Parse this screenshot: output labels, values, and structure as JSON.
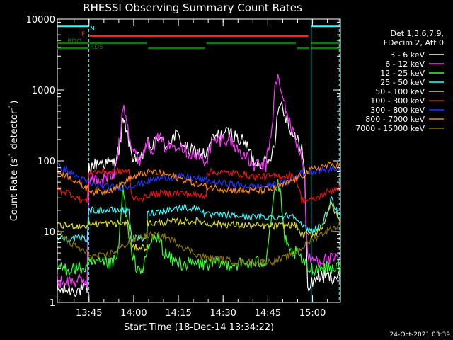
{
  "chart_data": {
    "type": "line",
    "title": "RHESSI Observing Summary Count Rates",
    "xlabel": "Start Time (18-Dec-14 13:34:22)",
    "ylabel": "Count Rate (s⁻¹ detector⁻¹)",
    "ylabel_parts": [
      "Count Rate (s",
      "-1",
      " detector",
      "-1",
      ")"
    ],
    "yscale": "log",
    "ylim": [
      1,
      10000
    ],
    "y_ticks": [
      {
        "v": 1,
        "label": "1"
      },
      {
        "v": 10,
        "label": "10"
      },
      {
        "v": 100,
        "label": "100"
      },
      {
        "v": 1000,
        "label": "1000"
      },
      {
        "v": 10000,
        "label": "10000"
      }
    ],
    "xlim_min": [
      0,
      95
    ],
    "x_ticks": [
      {
        "v": 10.63,
        "label": "13:45"
      },
      {
        "v": 25.63,
        "label": "14:00"
      },
      {
        "v": 40.63,
        "label": "14:15"
      },
      {
        "v": 55.63,
        "label": "14:30"
      },
      {
        "v": 70.63,
        "label": "14:45"
      },
      {
        "v": 85.63,
        "label": "15:00"
      }
    ],
    "legend_header": [
      "Det 1,3,6,7,9,",
      "FDecim 2, Att 0"
    ],
    "series": [
      {
        "name": "3 - 6 keV",
        "color": "#ffffff",
        "points": [
          [
            0,
            1.5
          ],
          [
            10,
            1.5
          ],
          [
            10.6,
            80
          ],
          [
            14,
            95
          ],
          [
            19,
            92
          ],
          [
            21,
            160
          ],
          [
            22,
            350
          ],
          [
            23,
            300
          ],
          [
            25,
            120
          ],
          [
            28,
            100
          ],
          [
            30,
            180
          ],
          [
            32,
            155
          ],
          [
            34,
            230
          ],
          [
            36,
            160
          ],
          [
            38,
            200
          ],
          [
            40,
            230
          ],
          [
            42,
            180
          ],
          [
            44,
            140
          ],
          [
            48,
            130
          ],
          [
            50,
            120
          ],
          [
            52,
            200
          ],
          [
            55,
            240
          ],
          [
            58,
            250
          ],
          [
            61,
            200
          ],
          [
            63,
            180
          ],
          [
            66,
            100
          ],
          [
            69,
            95
          ],
          [
            71,
            95
          ],
          [
            73,
            200
          ],
          [
            74,
            500
          ],
          [
            75,
            700
          ],
          [
            76,
            500
          ],
          [
            77,
            400
          ],
          [
            78,
            300
          ],
          [
            80,
            200
          ],
          [
            82,
            160
          ],
          [
            83,
            60
          ],
          [
            84,
            1.5
          ],
          [
            85,
            1.8
          ],
          [
            87,
            2.3
          ],
          [
            95,
            2.3
          ]
        ]
      },
      {
        "name": "6 - 12 keV",
        "color": "#ff33ff",
        "points": [
          [
            0,
            2
          ],
          [
            10,
            2
          ],
          [
            10.6,
            55
          ],
          [
            15,
            55
          ],
          [
            19,
            62
          ],
          [
            21,
            200
          ],
          [
            22,
            620
          ],
          [
            23,
            500
          ],
          [
            24,
            250
          ],
          [
            25,
            150
          ],
          [
            27,
            110
          ],
          [
            28,
            105
          ],
          [
            30,
            180
          ],
          [
            32,
            150
          ],
          [
            34,
            220
          ],
          [
            36,
            160
          ],
          [
            38,
            160
          ],
          [
            41,
            180
          ],
          [
            44,
            130
          ],
          [
            48,
            110
          ],
          [
            50,
            100
          ],
          [
            52,
            180
          ],
          [
            55,
            200
          ],
          [
            58,
            200
          ],
          [
            60,
            150
          ],
          [
            62,
            130
          ],
          [
            64,
            100
          ],
          [
            66,
            85
          ],
          [
            70,
            85
          ],
          [
            72,
            300
          ],
          [
            73,
            1000
          ],
          [
            74,
            1600
          ],
          [
            75,
            900
          ],
          [
            76,
            700
          ],
          [
            77,
            500
          ],
          [
            78,
            330
          ],
          [
            80,
            200
          ],
          [
            81,
            150
          ],
          [
            82,
            110
          ],
          [
            83,
            50
          ],
          [
            84,
            4
          ],
          [
            85,
            4
          ],
          [
            95,
            4
          ]
        ]
      },
      {
        "name": "12 - 25 keV",
        "color": "#33ff33",
        "points": [
          [
            0,
            3
          ],
          [
            10,
            3
          ],
          [
            10.6,
            3.5
          ],
          [
            15,
            3.5
          ],
          [
            18,
            3.5
          ],
          [
            20,
            4
          ],
          [
            21,
            10
          ],
          [
            22,
            40
          ],
          [
            23,
            20
          ],
          [
            24,
            8
          ],
          [
            25,
            4.5
          ],
          [
            27,
            3
          ],
          [
            29,
            3
          ],
          [
            30,
            5
          ],
          [
            32,
            8
          ],
          [
            34,
            8
          ],
          [
            36,
            5
          ],
          [
            38,
            4
          ],
          [
            42,
            3.5
          ],
          [
            48,
            3.5
          ],
          [
            52,
            3.5
          ],
          [
            55,
            3.5
          ],
          [
            60,
            3.5
          ],
          [
            66,
            3.5
          ],
          [
            70,
            4
          ],
          [
            72,
            20
          ],
          [
            73,
            40
          ],
          [
            74,
            45
          ],
          [
            75,
            30
          ],
          [
            76,
            10
          ],
          [
            77,
            6
          ],
          [
            78,
            5
          ],
          [
            80,
            5
          ],
          [
            82,
            4
          ],
          [
            83,
            3.5
          ],
          [
            84,
            3
          ],
          [
            95,
            3.2
          ]
        ]
      },
      {
        "name": "25 - 50 keV",
        "color": "#33ffff",
        "points": [
          [
            0,
            8
          ],
          [
            10,
            8
          ],
          [
            10.6,
            20
          ],
          [
            14,
            20
          ],
          [
            19,
            20
          ],
          [
            24,
            20
          ],
          [
            25,
            8
          ],
          [
            30,
            8
          ],
          [
            30.2,
            18
          ],
          [
            36,
            20
          ],
          [
            42,
            22
          ],
          [
            48,
            21
          ],
          [
            50,
            17
          ],
          [
            52,
            17
          ],
          [
            58,
            17
          ],
          [
            66,
            16
          ],
          [
            70,
            16
          ],
          [
            74,
            16
          ],
          [
            78,
            17
          ],
          [
            80,
            17
          ],
          [
            82,
            12
          ],
          [
            85,
            10
          ],
          [
            89,
            13
          ],
          [
            91,
            22
          ],
          [
            92,
            28
          ],
          [
            93,
            22
          ],
          [
            95,
            16
          ]
        ]
      },
      {
        "name": "50 - 100 keV",
        "color": "#dddd22",
        "points": [
          [
            0,
            12
          ],
          [
            10,
            12
          ],
          [
            10.6,
            13
          ],
          [
            14,
            13
          ],
          [
            19,
            13
          ],
          [
            24,
            13
          ],
          [
            25,
            6
          ],
          [
            30,
            6
          ],
          [
            30.2,
            13
          ],
          [
            36,
            13.5
          ],
          [
            42,
            14
          ],
          [
            48,
            14
          ],
          [
            50,
            13
          ],
          [
            52,
            13
          ],
          [
            58,
            12.5
          ],
          [
            66,
            12
          ],
          [
            74,
            12
          ],
          [
            78,
            12.5
          ],
          [
            80,
            12.5
          ],
          [
            82,
            9
          ],
          [
            86,
            9
          ],
          [
            89,
            12
          ],
          [
            91,
            20
          ],
          [
            92,
            24
          ],
          [
            93,
            20
          ],
          [
            95,
            13
          ]
        ]
      },
      {
        "name": "100 - 300 keV",
        "color": "#ee1111",
        "points": [
          [
            0,
            40
          ],
          [
            4,
            35
          ],
          [
            8,
            28
          ],
          [
            10,
            27
          ],
          [
            10.6,
            70
          ],
          [
            15,
            70
          ],
          [
            20,
            70
          ],
          [
            24,
            72
          ],
          [
            25,
            30
          ],
          [
            30,
            30
          ],
          [
            30.2,
            33
          ],
          [
            36,
            35
          ],
          [
            42,
            35
          ],
          [
            48,
            32
          ],
          [
            50,
            33
          ],
          [
            50.2,
            70
          ],
          [
            56,
            68
          ],
          [
            62,
            65
          ],
          [
            66,
            60
          ],
          [
            70,
            60
          ],
          [
            74,
            60
          ],
          [
            78,
            62
          ],
          [
            80,
            60
          ],
          [
            82,
            28
          ],
          [
            86,
            28
          ],
          [
            90,
            35
          ],
          [
            93,
            40
          ],
          [
            95,
            43
          ]
        ]
      },
      {
        "name": "300 - 800 keV",
        "color": "#2233ff",
        "points": [
          [
            0,
            85
          ],
          [
            4,
            70
          ],
          [
            8,
            55
          ],
          [
            12,
            46
          ],
          [
            16,
            43
          ],
          [
            20,
            42
          ],
          [
            24,
            44
          ],
          [
            28,
            48
          ],
          [
            32,
            54
          ],
          [
            36,
            58
          ],
          [
            40,
            59
          ],
          [
            44,
            58
          ],
          [
            48,
            55
          ],
          [
            52,
            50
          ],
          [
            56,
            48
          ],
          [
            60,
            46
          ],
          [
            64,
            44
          ],
          [
            66,
            43
          ],
          [
            70,
            44
          ],
          [
            74,
            47
          ],
          [
            78,
            52
          ],
          [
            80,
            60
          ],
          [
            82,
            68
          ],
          [
            86,
            72
          ],
          [
            90,
            76
          ],
          [
            93,
            78
          ],
          [
            95,
            78
          ]
        ]
      },
      {
        "name": "800 - 7000 keV",
        "color": "#ff8800",
        "points": [
          [
            0,
            70
          ],
          [
            4,
            60
          ],
          [
            8,
            45
          ],
          [
            12,
            37
          ],
          [
            16,
            37
          ],
          [
            20,
            43
          ],
          [
            24,
            55
          ],
          [
            28,
            65
          ],
          [
            32,
            70
          ],
          [
            36,
            65
          ],
          [
            40,
            58
          ],
          [
            44,
            52
          ],
          [
            48,
            45
          ],
          [
            52,
            42
          ],
          [
            56,
            40
          ],
          [
            60,
            38
          ],
          [
            64,
            38
          ],
          [
            68,
            38
          ],
          [
            72,
            40
          ],
          [
            76,
            46
          ],
          [
            80,
            55
          ],
          [
            84,
            70
          ],
          [
            88,
            82
          ],
          [
            92,
            88
          ],
          [
            95,
            88
          ]
        ]
      },
      {
        "name": "7000 - 15000 keV",
        "color": "#887700",
        "points": [
          [
            0,
            10
          ],
          [
            4,
            7
          ],
          [
            8,
            5.5
          ],
          [
            12,
            4.5
          ],
          [
            16,
            4.5
          ],
          [
            20,
            5.5
          ],
          [
            24,
            7
          ],
          [
            28,
            8.5
          ],
          [
            32,
            9
          ],
          [
            36,
            8.5
          ],
          [
            40,
            7
          ],
          [
            44,
            5.5
          ],
          [
            48,
            4.5
          ],
          [
            52,
            4.2
          ],
          [
            56,
            4
          ],
          [
            60,
            3.8
          ],
          [
            64,
            3.7
          ],
          [
            68,
            3.7
          ],
          [
            72,
            3.8
          ],
          [
            76,
            4.2
          ],
          [
            80,
            5
          ],
          [
            84,
            7
          ],
          [
            88,
            9
          ],
          [
            92,
            11
          ],
          [
            95,
            12
          ]
        ]
      }
    ],
    "bars": [
      {
        "label": "N",
        "color": "#33ffff",
        "level": 8000,
        "segments": [
          [
            0,
            10.6
          ],
          [
            85.3,
            95
          ]
        ]
      },
      {
        "label": "F",
        "color": "#ff2222",
        "level": 5800,
        "segments": [
          [
            10.8,
            84.2
          ]
        ]
      },
      {
        "label": "RDO",
        "color": "#117711",
        "level": 4600,
        "segments": [
          [
            0,
            10.6
          ],
          [
            10.8,
            30
          ],
          [
            50,
            80
          ],
          [
            85.3,
            95
          ]
        ]
      },
      {
        "label": "RDS",
        "color": "#117711",
        "level": 3900,
        "segments": [
          [
            0,
            10.6
          ],
          [
            30.5,
            49.5
          ],
          [
            80.5,
            84.5
          ],
          [
            85.3,
            95
          ]
        ]
      }
    ],
    "vlines": [
      {
        "x": 10.6,
        "style": "dashed",
        "color": "#33ffff"
      },
      {
        "x": 85.2,
        "style": "solid",
        "color": "#33ffff"
      },
      {
        "x": 94.6,
        "style": "dashed",
        "color": "#33ffff"
      }
    ]
  },
  "footer_timestamp": "24-Oct-2021 03:39"
}
